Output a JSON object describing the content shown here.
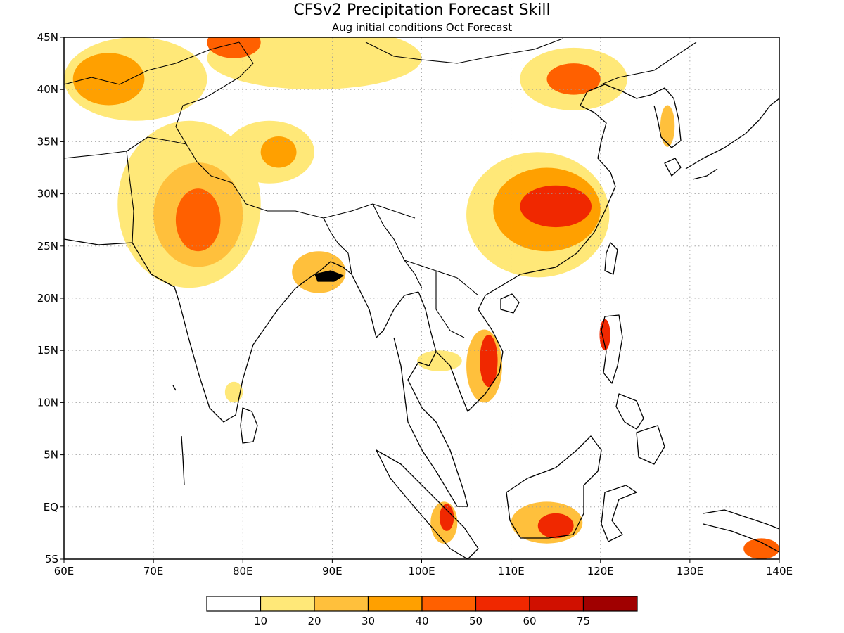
{
  "title": "CFSv2 Precipitation Forecast Skill",
  "subtitle": "Aug initial conditions  Oct Forecast",
  "map": {
    "lon_range": [
      60,
      140
    ],
    "lat_range": [
      -5,
      45
    ],
    "lon_ticks": [
      {
        "value": 60,
        "label": "60E"
      },
      {
        "value": 70,
        "label": "70E"
      },
      {
        "value": 80,
        "label": "80E"
      },
      {
        "value": 90,
        "label": "90E"
      },
      {
        "value": 100,
        "label": "100E"
      },
      {
        "value": 110,
        "label": "110E"
      },
      {
        "value": 120,
        "label": "120E"
      },
      {
        "value": 130,
        "label": "130E"
      },
      {
        "value": 140,
        "label": "140E"
      }
    ],
    "lat_ticks": [
      {
        "value": 45,
        "label": "45N"
      },
      {
        "value": 40,
        "label": "40N"
      },
      {
        "value": 35,
        "label": "35N"
      },
      {
        "value": 30,
        "label": "30N"
      },
      {
        "value": 25,
        "label": "25N"
      },
      {
        "value": 20,
        "label": "20N"
      },
      {
        "value": 15,
        "label": "15N"
      },
      {
        "value": 10,
        "label": "10N"
      },
      {
        "value": 5,
        "label": "5N"
      },
      {
        "value": 0,
        "label": "EQ"
      },
      {
        "value": -5,
        "label": "5S"
      }
    ],
    "grid": "dotted",
    "skill_regions": [
      {
        "name": "northwest-india-pakistan-core",
        "lon": 75,
        "lat": 27.5,
        "rlon": 2.5,
        "rlat": 3,
        "level": 40
      },
      {
        "name": "northwest-india-pakistan-mid",
        "lon": 75,
        "lat": 28,
        "rlon": 5,
        "rlat": 5,
        "level": 20
      },
      {
        "name": "northwest-india-pakistan-outer",
        "lon": 74,
        "lat": 29,
        "rlon": 8,
        "rlat": 8,
        "level": 10
      },
      {
        "name": "central-asia-outer",
        "lon": 68,
        "lat": 41,
        "rlon": 8,
        "rlat": 4,
        "level": 10
      },
      {
        "name": "central-asia-core",
        "lon": 65,
        "lat": 41,
        "rlon": 4,
        "rlat": 2.5,
        "level": 30
      },
      {
        "name": "tibet-west",
        "lon": 83,
        "lat": 34,
        "rlon": 5,
        "rlat": 3,
        "level": 10
      },
      {
        "name": "tibet-west-core",
        "lon": 84,
        "lat": 34,
        "rlon": 2,
        "rlat": 1.5,
        "level": 30
      },
      {
        "name": "mongolia-strip",
        "lon": 88,
        "lat": 43,
        "rlon": 12,
        "rlat": 3,
        "level": 10
      },
      {
        "name": "northern-edge-core",
        "lon": 79,
        "lat": 44.5,
        "rlon": 3,
        "rlat": 1.5,
        "level": 40
      },
      {
        "name": "south-china-outer",
        "lon": 113,
        "lat": 28,
        "rlon": 8,
        "rlat": 6,
        "level": 10
      },
      {
        "name": "south-china-mid",
        "lon": 114,
        "lat": 28.5,
        "rlon": 6,
        "rlat": 4,
        "level": 30
      },
      {
        "name": "south-china-core",
        "lon": 115,
        "lat": 28.8,
        "rlon": 4,
        "rlat": 2,
        "level": 50
      },
      {
        "name": "north-china-outer",
        "lon": 117,
        "lat": 41,
        "rlon": 6,
        "rlat": 3,
        "level": 10
      },
      {
        "name": "north-china-core",
        "lon": 117,
        "lat": 41,
        "rlon": 3,
        "rlat": 1.5,
        "level": 40
      },
      {
        "name": "bangladesh",
        "lon": 88.5,
        "lat": 22.5,
        "rlon": 3,
        "rlat": 2,
        "level": 20
      },
      {
        "name": "vietnam-outer",
        "lon": 107,
        "lat": 13.5,
        "rlon": 2,
        "rlat": 3.5,
        "level": 20
      },
      {
        "name": "vietnam-core",
        "lon": 107.5,
        "lat": 14,
        "rlon": 1,
        "rlat": 2.5,
        "level": 50
      },
      {
        "name": "thailand",
        "lon": 102,
        "lat": 14,
        "rlon": 2.5,
        "rlat": 1,
        "level": 10
      },
      {
        "name": "borneo-outer",
        "lon": 114,
        "lat": -1.5,
        "rlon": 4,
        "rlat": 2,
        "level": 20
      },
      {
        "name": "borneo-core",
        "lon": 115,
        "lat": -1.8,
        "rlon": 2,
        "rlat": 1.2,
        "level": 50
      },
      {
        "name": "sumatra-outer",
        "lon": 102.5,
        "lat": -1.5,
        "rlon": 1.5,
        "rlat": 2,
        "level": 20
      },
      {
        "name": "sumatra-core",
        "lon": 102.8,
        "lat": -1,
        "rlon": 0.8,
        "rlat": 1.3,
        "level": 50
      },
      {
        "name": "new-guinea",
        "lon": 138,
        "lat": -4,
        "rlon": 2,
        "rlat": 1,
        "level": 40
      },
      {
        "name": "korea",
        "lon": 127.5,
        "lat": 36.5,
        "rlon": 0.8,
        "rlat": 2,
        "level": 20
      },
      {
        "name": "sri-lanka-south-india",
        "lon": 79,
        "lat": 11,
        "rlon": 1,
        "rlat": 1,
        "level": 10
      },
      {
        "name": "luzon",
        "lon": 120.5,
        "lat": 16.5,
        "rlon": 0.6,
        "rlat": 1.5,
        "level": 50
      }
    ]
  },
  "colorbar": {
    "colors": [
      "#ffffff",
      "#ffe878",
      "#ffc03c",
      "#ffa000",
      "#ff6000",
      "#f02800",
      "#d01000",
      "#a00000"
    ],
    "labels": [
      "10",
      "20",
      "30",
      "40",
      "50",
      "60",
      "75"
    ],
    "thresholds": [
      10,
      20,
      30,
      40,
      50,
      60,
      75
    ]
  }
}
